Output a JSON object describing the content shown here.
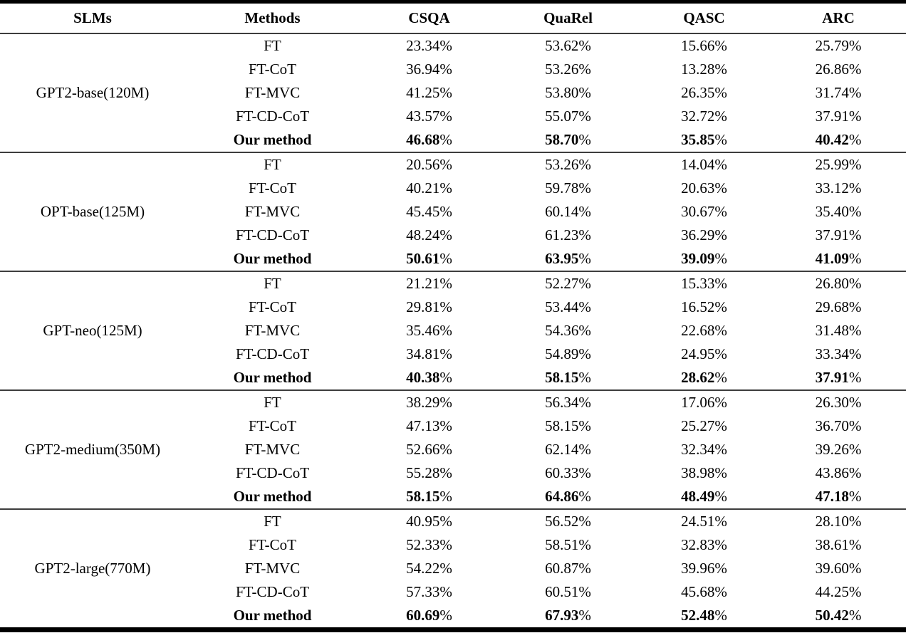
{
  "table": {
    "columns": [
      "SLMs",
      "Methods",
      "CSQA",
      "QuaRel",
      "QASC",
      "ARC"
    ],
    "percent_suffix": "%",
    "groups": [
      {
        "slm": "GPT2-base(120M)",
        "rows": [
          {
            "method": "FT",
            "bold": false,
            "values": [
              "23.34",
              "53.62",
              "15.66",
              "25.79"
            ]
          },
          {
            "method": "FT-CoT",
            "bold": false,
            "values": [
              "36.94",
              "53.26",
              "13.28",
              "26.86"
            ]
          },
          {
            "method": "FT-MVC",
            "bold": false,
            "values": [
              "41.25",
              "53.80",
              "26.35",
              "31.74"
            ]
          },
          {
            "method": "FT-CD-CoT",
            "bold": false,
            "values": [
              "43.57",
              "55.07",
              "32.72",
              "37.91"
            ]
          },
          {
            "method": "Our method",
            "bold": true,
            "values": [
              "46.68",
              "58.70",
              "35.85",
              "40.42"
            ]
          }
        ]
      },
      {
        "slm": "OPT-base(125M)",
        "rows": [
          {
            "method": "FT",
            "bold": false,
            "values": [
              "20.56",
              "53.26",
              "14.04",
              "25.99"
            ]
          },
          {
            "method": "FT-CoT",
            "bold": false,
            "values": [
              "40.21",
              "59.78",
              "20.63",
              "33.12"
            ]
          },
          {
            "method": "FT-MVC",
            "bold": false,
            "values": [
              "45.45",
              "60.14",
              "30.67",
              "35.40"
            ]
          },
          {
            "method": "FT-CD-CoT",
            "bold": false,
            "values": [
              "48.24",
              "61.23",
              "36.29",
              "37.91"
            ]
          },
          {
            "method": "Our method",
            "bold": true,
            "values": [
              "50.61",
              "63.95",
              "39.09",
              "41.09"
            ]
          }
        ]
      },
      {
        "slm": "GPT-neo(125M)",
        "rows": [
          {
            "method": "FT",
            "bold": false,
            "values": [
              "21.21",
              "52.27",
              "15.33",
              "26.80"
            ]
          },
          {
            "method": "FT-CoT",
            "bold": false,
            "values": [
              "29.81",
              "53.44",
              "16.52",
              "29.68"
            ]
          },
          {
            "method": "FT-MVC",
            "bold": false,
            "values": [
              "35.46",
              "54.36",
              "22.68",
              "31.48"
            ]
          },
          {
            "method": "FT-CD-CoT",
            "bold": false,
            "values": [
              "34.81",
              "54.89",
              "24.95",
              "33.34"
            ]
          },
          {
            "method": "Our method",
            "bold": true,
            "values": [
              "40.38",
              "58.15",
              "28.62",
              "37.91"
            ]
          }
        ]
      },
      {
        "slm": "GPT2-medium(350M)",
        "rows": [
          {
            "method": "FT",
            "bold": false,
            "values": [
              "38.29",
              "56.34",
              "17.06",
              "26.30"
            ]
          },
          {
            "method": "FT-CoT",
            "bold": false,
            "values": [
              "47.13",
              "58.15",
              "25.27",
              "36.70"
            ]
          },
          {
            "method": "FT-MVC",
            "bold": false,
            "values": [
              "52.66",
              "62.14",
              "32.34",
              "39.26"
            ]
          },
          {
            "method": "FT-CD-CoT",
            "bold": false,
            "values": [
              "55.28",
              "60.33",
              "38.98",
              "43.86"
            ]
          },
          {
            "method": "Our method",
            "bold": true,
            "values": [
              "58.15",
              "64.86",
              "48.49",
              "47.18"
            ]
          }
        ]
      },
      {
        "slm": "GPT2-large(770M)",
        "rows": [
          {
            "method": "FT",
            "bold": false,
            "values": [
              "40.95",
              "56.52",
              "24.51",
              "28.10"
            ]
          },
          {
            "method": "FT-CoT",
            "bold": false,
            "values": [
              "52.33",
              "58.51",
              "32.83",
              "38.61"
            ]
          },
          {
            "method": "FT-MVC",
            "bold": false,
            "values": [
              "54.22",
              "60.87",
              "39.96",
              "39.60"
            ]
          },
          {
            "method": "FT-CD-CoT",
            "bold": false,
            "values": [
              "57.33",
              "60.51",
              "45.68",
              "44.25"
            ]
          },
          {
            "method": "Our method",
            "bold": true,
            "values": [
              "60.69",
              "67.93",
              "52.48",
              "50.42"
            ]
          }
        ]
      }
    ]
  }
}
